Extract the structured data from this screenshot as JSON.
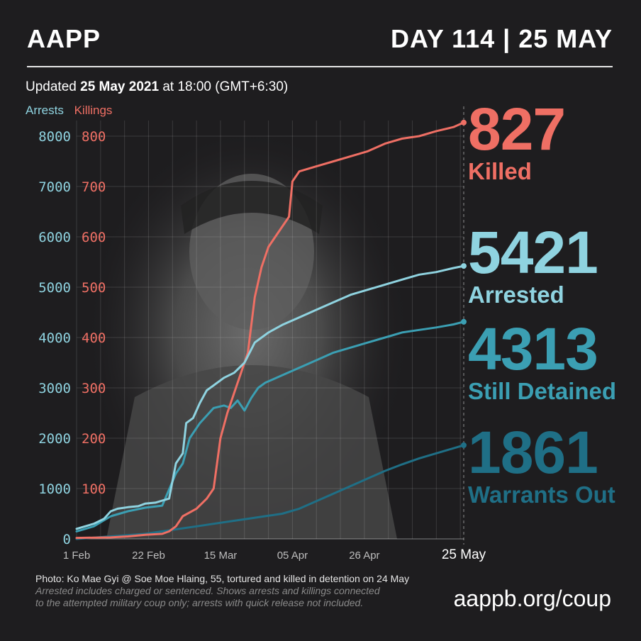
{
  "header": {
    "logo": "AAPP",
    "day": "DAY 114  |  25 MAY",
    "updated_prefix": "Updated ",
    "updated_date": "25 May 2021",
    "updated_suffix": " at 18:00 (GMT+6:30)"
  },
  "legend": {
    "arrests": "Arrests",
    "killings": "Killings"
  },
  "stats": [
    {
      "number": "827",
      "label": "Killed",
      "color": "#ef6f64"
    },
    {
      "number": "5421",
      "label": "Arrested",
      "color": "#8fd3e0"
    },
    {
      "number": "4313",
      "label": "Still Detained",
      "color": "#3b9fb3"
    },
    {
      "number": "1861",
      "label": "Warrants Out",
      "color": "#1f6f86"
    }
  ],
  "footer": {
    "photo_credit": "Photo: Ko Mae Gyi @ Soe Moe Hlaing, 55, tortured and killed in detention on 24 May",
    "note_line1": "Arrested includes charged or sentenced. Shows arrests and killings connected",
    "note_line2": "to the attempted military coup only; arrests with quick release not included.",
    "url": "aappb.org/coup"
  },
  "chart_data": {
    "type": "line",
    "x_tick_labels": [
      "1 Feb",
      "22 Feb",
      "15 Mar",
      "05 Apr",
      "26 Apr",
      "25 May"
    ],
    "x_tick_days": [
      0,
      21,
      42,
      63,
      84,
      113
    ],
    "xlim": [
      0,
      113
    ],
    "y_left_label": "Arrests",
    "y_left_ticks": [
      0,
      1000,
      2000,
      3000,
      4000,
      5000,
      6000,
      7000,
      8000
    ],
    "y_left_lim": [
      0,
      8000
    ],
    "y_right_label": "Killings",
    "y_right_ticks": [
      100,
      200,
      300,
      400,
      500,
      600,
      700,
      800
    ],
    "y_right_lim": [
      0,
      800
    ],
    "grid": true,
    "series": [
      {
        "name": "Arrests",
        "axis": "left",
        "color": "#8fd3e0",
        "x": [
          0,
          5,
          8,
          10,
          12,
          15,
          18,
          20,
          23,
          25,
          27,
          29,
          31,
          32,
          34,
          36,
          38,
          40,
          43,
          46,
          49,
          52,
          54,
          56,
          60,
          65,
          70,
          75,
          80,
          85,
          90,
          95,
          100,
          105,
          110,
          113
        ],
        "y": [
          200,
          300,
          400,
          550,
          600,
          630,
          650,
          700,
          720,
          760,
          800,
          1500,
          1700,
          2300,
          2400,
          2700,
          2950,
          3050,
          3200,
          3300,
          3500,
          3900,
          4000,
          4100,
          4250,
          4400,
          4550,
          4700,
          4850,
          4950,
          5050,
          5150,
          5250,
          5300,
          5380,
          5421
        ]
      },
      {
        "name": "Killings",
        "axis": "right",
        "color": "#ef6f64",
        "x": [
          0,
          10,
          15,
          20,
          25,
          27,
          29,
          31,
          35,
          38,
          40,
          42,
          44,
          47,
          50,
          52,
          54,
          56,
          58,
          62,
          63,
          65,
          70,
          75,
          80,
          85,
          90,
          95,
          100,
          105,
          110,
          113
        ],
        "y": [
          2,
          3,
          5,
          8,
          10,
          15,
          25,
          45,
          60,
          80,
          100,
          200,
          250,
          310,
          370,
          480,
          540,
          580,
          600,
          640,
          710,
          730,
          740,
          750,
          760,
          770,
          785,
          795,
          800,
          810,
          818,
          827
        ]
      },
      {
        "name": "Still Detained",
        "axis": "left",
        "color": "#3b9fb3",
        "x": [
          0,
          5,
          10,
          15,
          20,
          25,
          29,
          31,
          33,
          36,
          40,
          43,
          45,
          47,
          49,
          51,
          53,
          55,
          60,
          65,
          70,
          75,
          80,
          85,
          90,
          95,
          100,
          105,
          110,
          113
        ],
        "y": [
          150,
          250,
          450,
          550,
          620,
          660,
          1300,
          1500,
          2000,
          2300,
          2600,
          2650,
          2600,
          2750,
          2550,
          2800,
          3000,
          3100,
          3250,
          3400,
          3550,
          3700,
          3800,
          3900,
          4000,
          4100,
          4150,
          4200,
          4260,
          4313
        ]
      },
      {
        "name": "Warrants Out",
        "axis": "left",
        "color": "#1f6f86",
        "x": [
          0,
          10,
          20,
          25,
          30,
          35,
          40,
          45,
          50,
          55,
          60,
          65,
          70,
          75,
          80,
          85,
          90,
          95,
          100,
          105,
          110,
          113
        ],
        "y": [
          0,
          50,
          100,
          150,
          200,
          250,
          300,
          350,
          400,
          450,
          500,
          600,
          750,
          900,
          1050,
          1200,
          1350,
          1480,
          1600,
          1700,
          1800,
          1861
        ]
      }
    ]
  }
}
